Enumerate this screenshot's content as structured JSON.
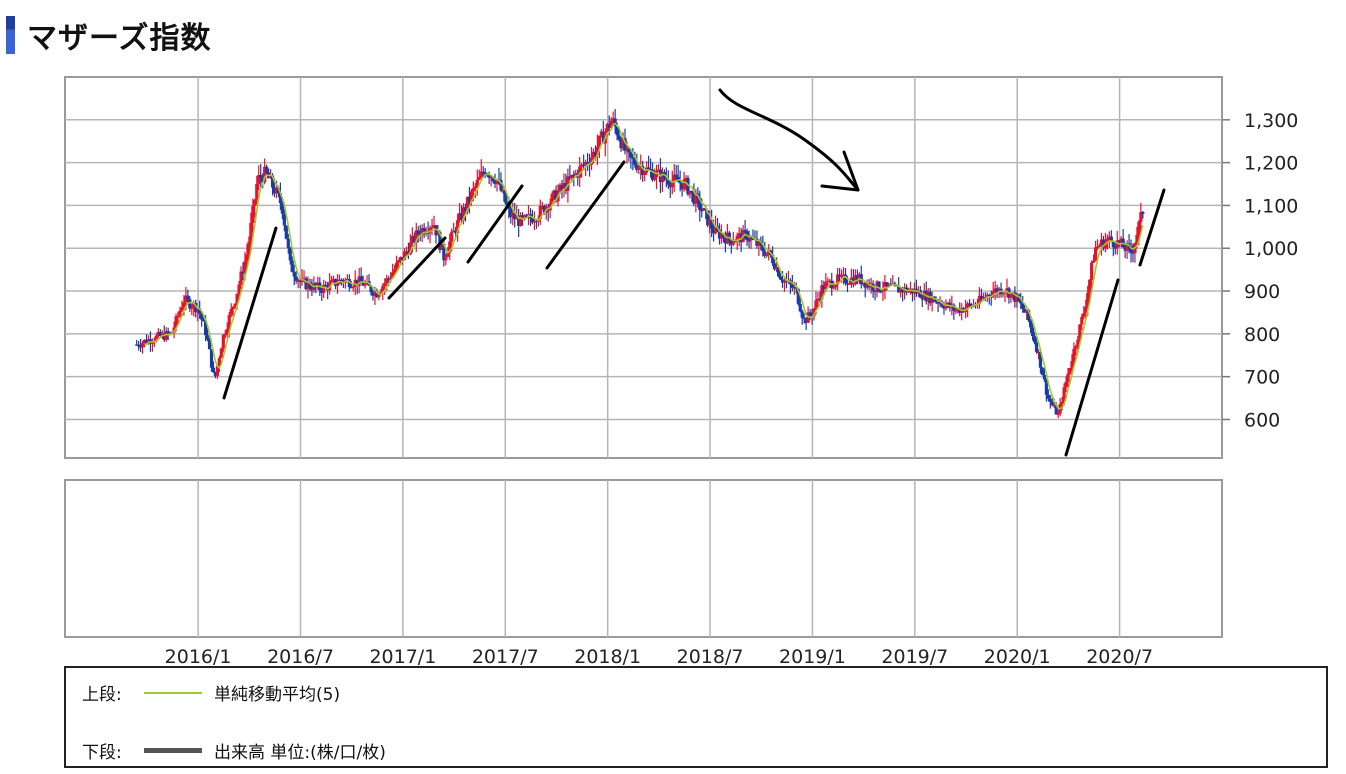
{
  "page": {
    "title": "マザーズ指数",
    "accent_color": "#1e3f9e"
  },
  "legend": {
    "upper_label": "上段:",
    "upper_series": "単純移動平均(5)",
    "upper_color": "#9ccc2c",
    "lower_label": "下段:",
    "lower_series": "出来高 単位:(株/口/枚)",
    "lower_color": "#555555"
  },
  "chart_data": {
    "type": "candlestick",
    "title": "",
    "y_ticks": [
      "1,300",
      "1,200",
      "1,100",
      "1,000",
      "900",
      "800",
      "700",
      "600"
    ],
    "y_tick_values": [
      1300,
      1200,
      1100,
      1000,
      900,
      800,
      700,
      600
    ],
    "ylim": [
      510,
      1400
    ],
    "x_ticks": [
      "2016/1",
      "2016/7",
      "2017/1",
      "2017/7",
      "2018/1",
      "2018/7",
      "2019/1",
      "2019/7",
      "2020/1",
      "2020/7"
    ],
    "x_tick_years": [
      2016.0,
      2016.5,
      2017.0,
      2017.5,
      2018.0,
      2018.5,
      2019.0,
      2019.5,
      2020.0,
      2020.5
    ],
    "xlim": [
      2015.35,
      2021.0
    ],
    "grid": true,
    "up_color": "#e8112d",
    "down_color": "#1a3aa8",
    "ma_color": "#9ccc2c",
    "price_path": [
      [
        2015.7,
        775
      ],
      [
        2015.78,
        790
      ],
      [
        2015.87,
        800
      ],
      [
        2015.93,
        880
      ],
      [
        2016.0,
        860
      ],
      [
        2016.04,
        800
      ],
      [
        2016.08,
        690
      ],
      [
        2016.12,
        790
      ],
      [
        2016.18,
        880
      ],
      [
        2016.24,
        990
      ],
      [
        2016.29,
        1160
      ],
      [
        2016.33,
        1175
      ],
      [
        2016.37,
        1140
      ],
      [
        2016.41,
        1100
      ],
      [
        2016.45,
        960
      ],
      [
        2016.5,
        920
      ],
      [
        2016.6,
        905
      ],
      [
        2016.7,
        925
      ],
      [
        2016.8,
        920
      ],
      [
        2016.87,
        895
      ],
      [
        2016.93,
        930
      ],
      [
        2017.0,
        980
      ],
      [
        2017.08,
        1040
      ],
      [
        2017.15,
        1060
      ],
      [
        2017.2,
        980
      ],
      [
        2017.26,
        1050
      ],
      [
        2017.33,
        1120
      ],
      [
        2017.4,
        1185
      ],
      [
        2017.46,
        1160
      ],
      [
        2017.52,
        1080
      ],
      [
        2017.58,
        1060
      ],
      [
        2017.66,
        1080
      ],
      [
        2017.74,
        1120
      ],
      [
        2017.84,
        1170
      ],
      [
        2017.93,
        1220
      ],
      [
        2018.02,
        1300
      ],
      [
        2018.05,
        1270
      ],
      [
        2018.1,
        1210
      ],
      [
        2018.2,
        1180
      ],
      [
        2018.3,
        1160
      ],
      [
        2018.38,
        1150
      ],
      [
        2018.46,
        1090
      ],
      [
        2018.52,
        1040
      ],
      [
        2018.6,
        1020
      ],
      [
        2018.68,
        1030
      ],
      [
        2018.75,
        1000
      ],
      [
        2018.8,
        980
      ],
      [
        2018.85,
        930
      ],
      [
        2018.92,
        900
      ],
      [
        2018.96,
        830
      ],
      [
        2019.0,
        850
      ],
      [
        2019.05,
        910
      ],
      [
        2019.12,
        925
      ],
      [
        2019.22,
        930
      ],
      [
        2019.3,
        910
      ],
      [
        2019.4,
        905
      ],
      [
        2019.5,
        900
      ],
      [
        2019.6,
        880
      ],
      [
        2019.7,
        855
      ],
      [
        2019.8,
        870
      ],
      [
        2019.88,
        900
      ],
      [
        2019.94,
        905
      ],
      [
        2020.0,
        880
      ],
      [
        2020.05,
        840
      ],
      [
        2020.1,
        760
      ],
      [
        2020.15,
        650
      ],
      [
        2020.2,
        610
      ],
      [
        2020.26,
        730
      ],
      [
        2020.33,
        860
      ],
      [
        2020.38,
        1000
      ],
      [
        2020.44,
        1020
      ],
      [
        2020.5,
        1010
      ],
      [
        2020.56,
        990
      ],
      [
        2020.62,
        1100
      ]
    ],
    "volume_panel": {
      "values": []
    }
  },
  "annotations": {
    "note": ""
  }
}
